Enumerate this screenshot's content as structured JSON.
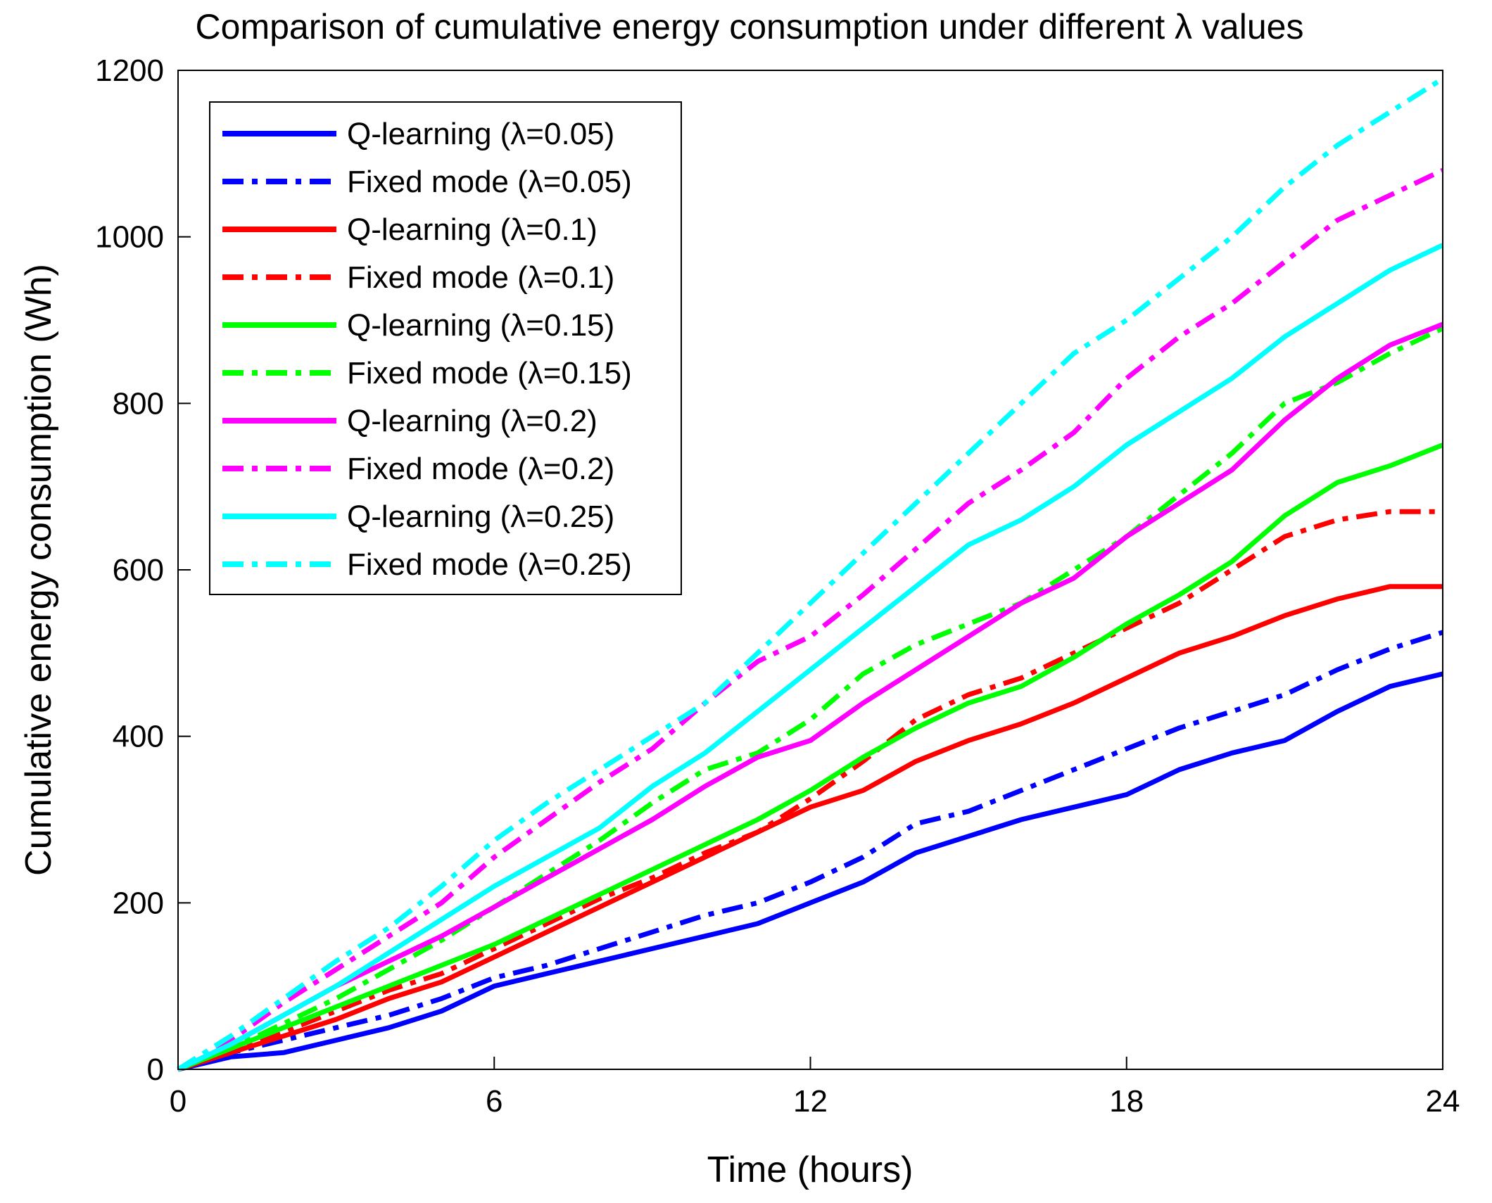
{
  "chart_data": {
    "type": "line",
    "title": "Comparison of cumulative energy consumption under different λ values",
    "xlabel": "Time (hours)",
    "ylabel": "Cumulative energy consumption (Wh)",
    "xlim": [
      0,
      24
    ],
    "ylim": [
      0,
      1200
    ],
    "xticks": [
      0,
      6,
      12,
      18,
      24
    ],
    "yticks": [
      0,
      200,
      400,
      600,
      800,
      1000,
      1200
    ],
    "xtick_labels": [
      "0",
      "6",
      "12",
      "18",
      "24"
    ],
    "ytick_labels": [
      "0",
      "200",
      "400",
      "600",
      "800",
      "1000",
      "1200"
    ],
    "grid": false,
    "legend_position": "top-left",
    "x": [
      0,
      1,
      2,
      3,
      4,
      5,
      6,
      7,
      8,
      9,
      10,
      11,
      12,
      13,
      14,
      15,
      16,
      17,
      18,
      19,
      20,
      21,
      22,
      23,
      24
    ],
    "series": [
      {
        "name": "Q-learning (λ=0.05)",
        "color": "#0000ff",
        "style": "solid",
        "values": [
          0,
          15,
          20,
          35,
          50,
          70,
          100,
          115,
          130,
          145,
          160,
          175,
          200,
          225,
          260,
          280,
          300,
          315,
          330,
          360,
          380,
          395,
          430,
          460,
          475
        ]
      },
      {
        "name": "Fixed mode (λ=0.05)",
        "color": "#0000ff",
        "style": "dashdot",
        "values": [
          0,
          20,
          35,
          50,
          65,
          85,
          110,
          125,
          145,
          165,
          185,
          200,
          225,
          255,
          295,
          310,
          335,
          360,
          385,
          410,
          430,
          450,
          480,
          505,
          525
        ]
      },
      {
        "name": "Q-learning (λ=0.1)",
        "color": "#ff0000",
        "style": "solid",
        "values": [
          0,
          20,
          40,
          60,
          85,
          105,
          135,
          165,
          195,
          225,
          255,
          285,
          315,
          335,
          370,
          395,
          415,
          440,
          470,
          500,
          520,
          545,
          565,
          580,
          580
        ]
      },
      {
        "name": "Fixed mode (λ=0.1)",
        "color": "#ff0000",
        "style": "dashdot",
        "values": [
          0,
          20,
          45,
          70,
          95,
          115,
          145,
          175,
          205,
          230,
          260,
          285,
          325,
          370,
          420,
          450,
          470,
          500,
          530,
          560,
          600,
          640,
          660,
          670,
          670
        ]
      },
      {
        "name": "Q-learning (λ=0.15)",
        "color": "#00ff00",
        "style": "solid",
        "values": [
          0,
          25,
          50,
          75,
          100,
          125,
          150,
          180,
          210,
          240,
          270,
          300,
          335,
          375,
          410,
          440,
          460,
          495,
          535,
          570,
          610,
          665,
          705,
          725,
          750
        ]
      },
      {
        "name": "Fixed mode (λ=0.15)",
        "color": "#00ff00",
        "style": "dashdot",
        "values": [
          0,
          25,
          55,
          85,
          120,
          155,
          195,
          235,
          275,
          320,
          360,
          380,
          420,
          475,
          510,
          535,
          560,
          600,
          640,
          690,
          740,
          800,
          825,
          860,
          890
        ]
      },
      {
        "name": "Q-learning (λ=0.2)",
        "color": "#ff00ff",
        "style": "solid",
        "values": [
          0,
          30,
          65,
          100,
          130,
          160,
          195,
          230,
          265,
          300,
          340,
          375,
          395,
          440,
          480,
          520,
          560,
          590,
          640,
          680,
          720,
          780,
          830,
          870,
          895
        ]
      },
      {
        "name": "Fixed mode (λ=0.2)",
        "color": "#ff00ff",
        "style": "dashdot",
        "values": [
          0,
          35,
          80,
          120,
          160,
          200,
          255,
          300,
          345,
          385,
          440,
          490,
          520,
          570,
          625,
          680,
          720,
          765,
          830,
          880,
          920,
          970,
          1020,
          1050,
          1080
        ]
      },
      {
        "name": "Q-learning (λ=0.25)",
        "color": "#00ffff",
        "style": "solid",
        "values": [
          0,
          30,
          65,
          100,
          140,
          180,
          220,
          255,
          290,
          340,
          380,
          430,
          480,
          530,
          580,
          630,
          660,
          700,
          750,
          790,
          830,
          880,
          920,
          960,
          990
        ]
      },
      {
        "name": "Fixed mode (λ=0.25)",
        "color": "#00ffff",
        "style": "dashdot",
        "values": [
          0,
          40,
          85,
          130,
          170,
          220,
          275,
          320,
          360,
          400,
          440,
          500,
          560,
          620,
          680,
          740,
          800,
          860,
          900,
          950,
          1000,
          1060,
          1110,
          1150,
          1190
        ]
      }
    ]
  }
}
